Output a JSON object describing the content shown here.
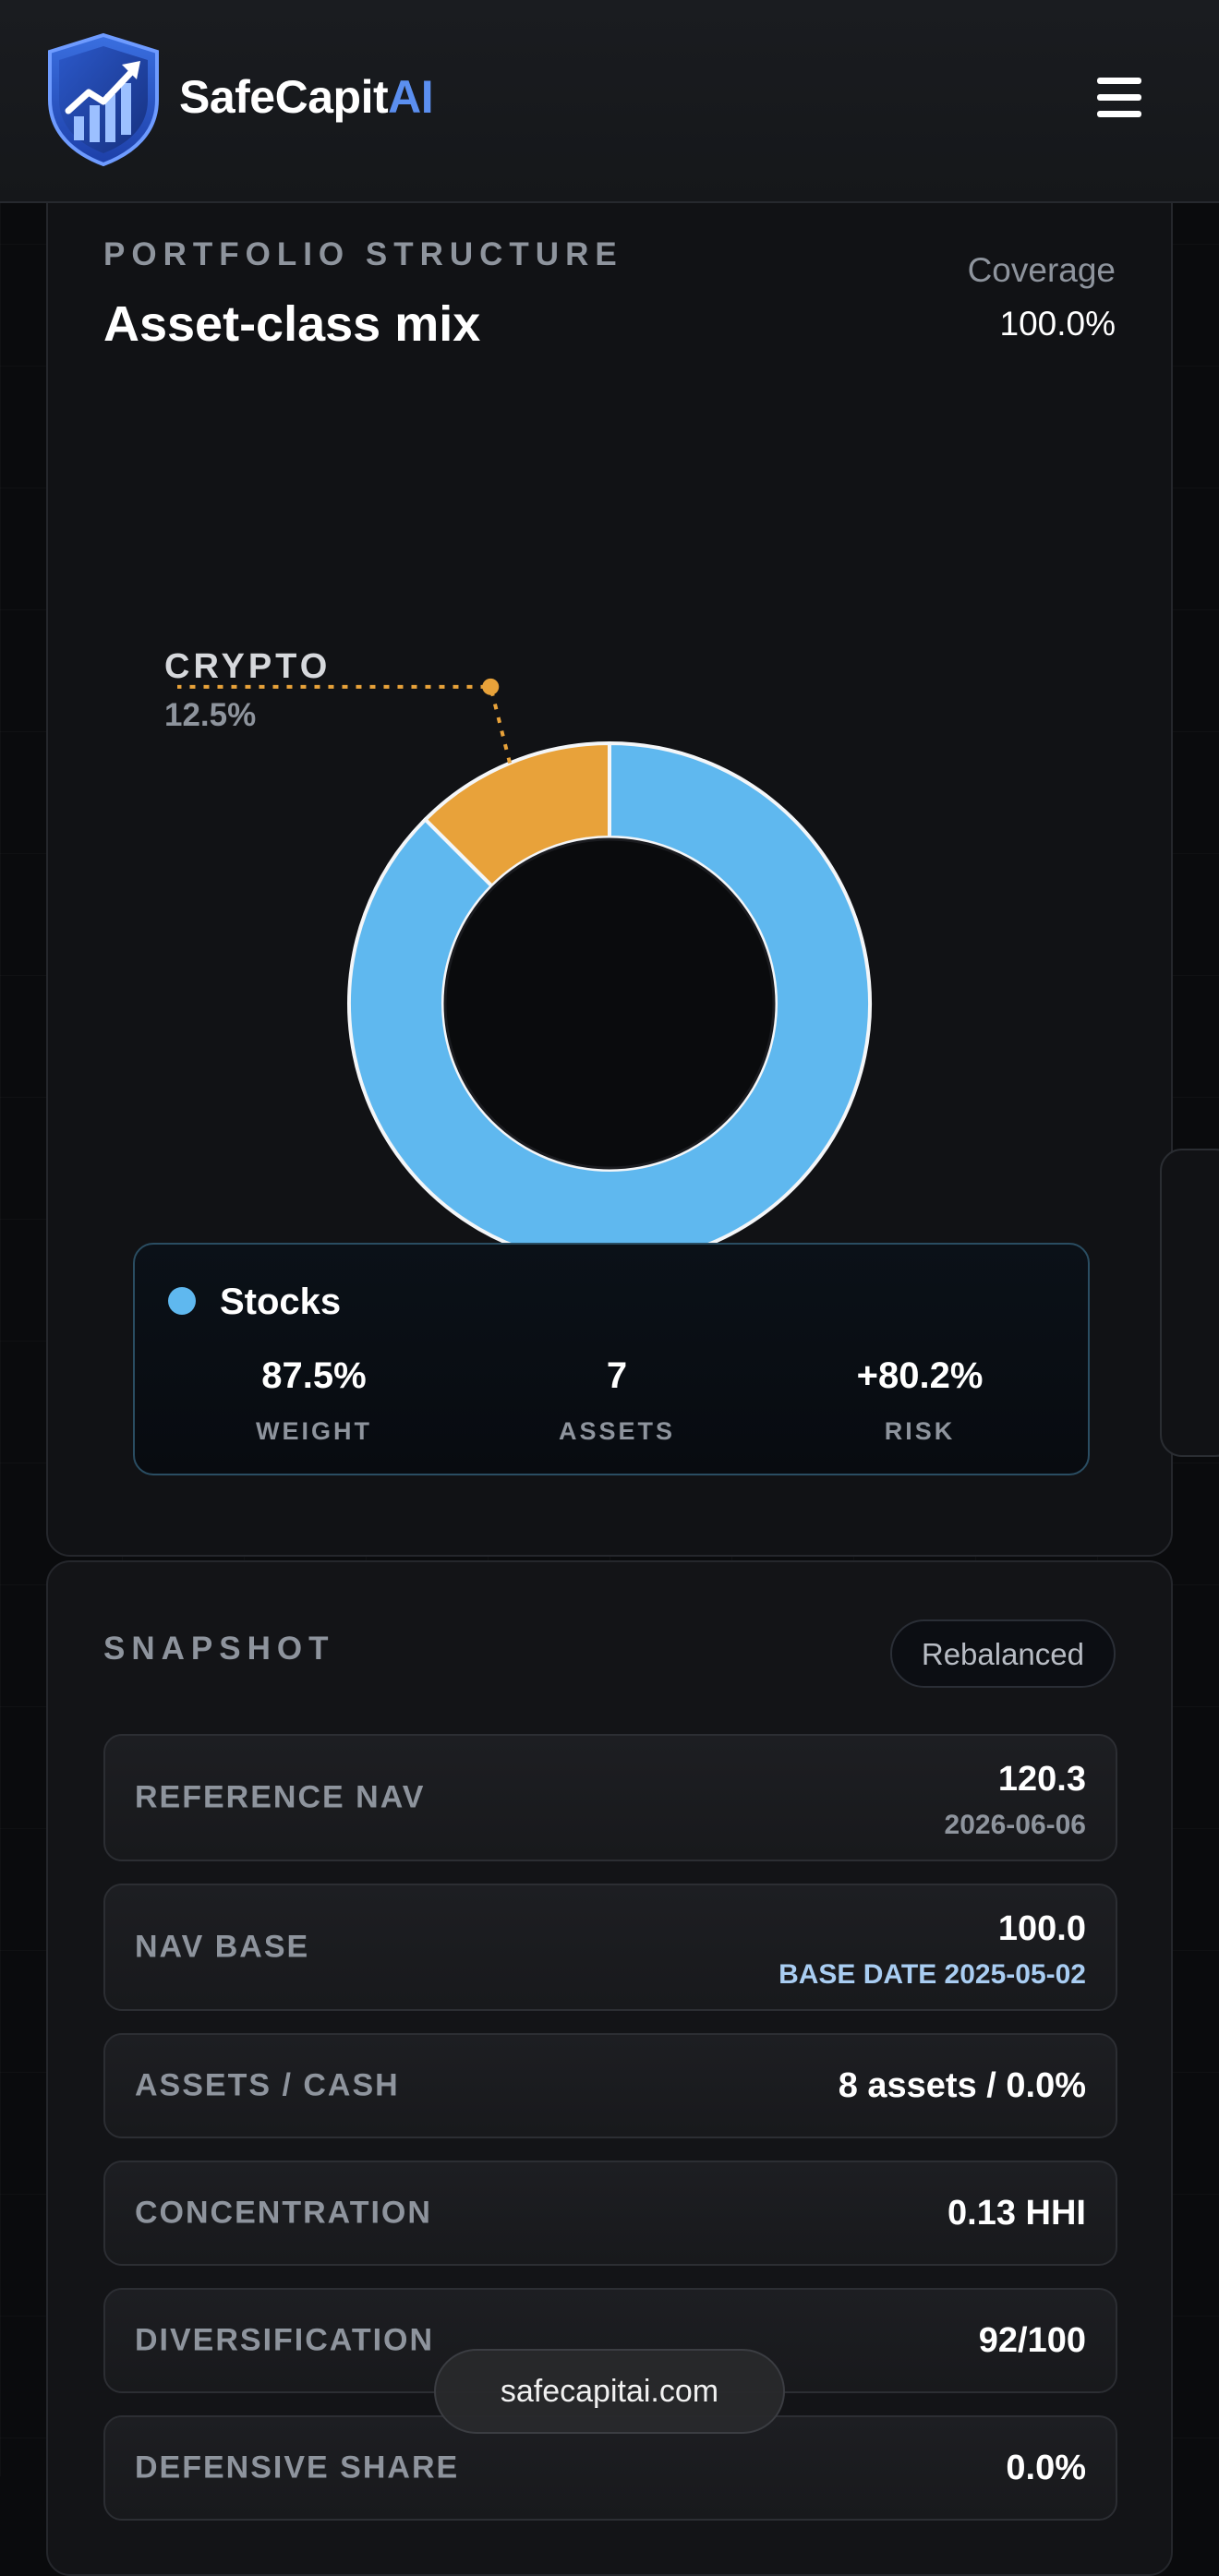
{
  "header": {
    "brand_main": "SafeCapit",
    "brand_accent": "AI",
    "logo_icon": "shield-chart-icon",
    "menu_icon": "hamburger-menu-icon"
  },
  "portfolio": {
    "eyebrow": "PORTFOLIO STRUCTURE",
    "title": "Asset-class mix",
    "coverage_label": "Coverage",
    "coverage_value": "100.0%"
  },
  "chart_data": {
    "type": "pie",
    "title": "Asset-class mix",
    "hole": "donut",
    "slices": [
      {
        "label": "STOCKS",
        "value": 87.5,
        "display": "87.5%",
        "color": "#5fb8ef"
      },
      {
        "label": "CRYPTO",
        "value": 12.5,
        "display": "12.5%",
        "color": "#e8a23a"
      }
    ]
  },
  "detail": {
    "name": "Stocks",
    "color": "#5fb8ef",
    "stats": [
      {
        "value": "87.5%",
        "label": "WEIGHT"
      },
      {
        "value": "7",
        "label": "ASSETS"
      },
      {
        "value": "+80.2%",
        "label": "RISK"
      }
    ]
  },
  "snapshot": {
    "eyebrow": "SNAPSHOT",
    "badge": "Rebalanced",
    "rows": [
      {
        "label": "REFERENCE NAV",
        "value": "120.3",
        "sub": "2026-06-06"
      },
      {
        "label": "NAV BASE",
        "value": "100.0",
        "sub": "BASE DATE 2025-05-02"
      },
      {
        "label": "ASSETS / CASH",
        "value": "8 assets / 0.0%"
      },
      {
        "label": "CONCENTRATION",
        "value": "0.13 HHI"
      },
      {
        "label": "DIVERSIFICATION",
        "value": "92/100"
      },
      {
        "label": "DEFENSIVE SHARE",
        "value": "0.0%"
      }
    ]
  },
  "footer": {
    "url": "safecapitai.com"
  }
}
